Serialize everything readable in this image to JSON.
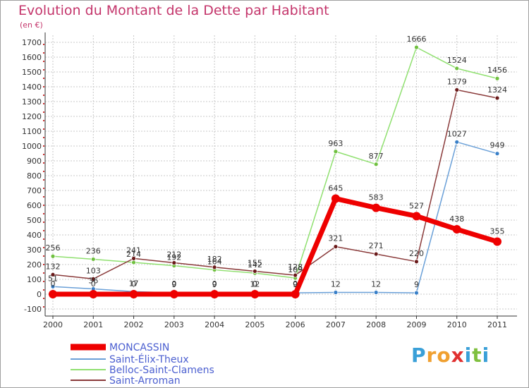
{
  "title": "Evolution du Montant de la Dette par Habitant",
  "unit": "(en €)",
  "logo": {
    "letters": [
      {
        "ch": "P",
        "color": "#3aa0d8"
      },
      {
        "ch": "r",
        "color": "#f0a030"
      },
      {
        "ch": "o",
        "color": "#f0a030"
      },
      {
        "ch": "x",
        "color": "#e03030"
      },
      {
        "ch": "i",
        "color": "#3aa0d8"
      },
      {
        "ch": "t",
        "color": "#80c040"
      },
      {
        "ch": "i",
        "color": "#3aa0d8"
      }
    ]
  },
  "chart_data": {
    "type": "line",
    "x": [
      "2000",
      "2001",
      "2002",
      "2003",
      "2004",
      "2005",
      "2006",
      "2007",
      "2008",
      "2009",
      "2010",
      "2011"
    ],
    "ylim": [
      -100,
      1700
    ],
    "yticks": [
      -100,
      0,
      100,
      200,
      300,
      400,
      500,
      600,
      700,
      800,
      900,
      1000,
      1100,
      1200,
      1300,
      1400,
      1500,
      1600,
      1700
    ],
    "grid": true,
    "legend_position": "bottom-left",
    "series": [
      {
        "name": "MONCASSIN",
        "color": "#ee0000",
        "marker": "#ee0000",
        "width": 7,
        "radius": 6,
        "values": [
          0,
          0,
          0,
          0,
          0,
          0,
          0,
          645,
          583,
          527,
          438,
          355
        ],
        "labels": [
          "0",
          "0",
          "0",
          "0",
          "0",
          "0",
          "0",
          "645",
          "583",
          "527",
          "438",
          "355"
        ]
      },
      {
        "name": "Saint-Élix-Theux",
        "color": "#6aa0d8",
        "marker": "#3a80c8",
        "width": 1.5,
        "radius": 3,
        "values": [
          51,
          36,
          17,
          9,
          9,
          12,
          9,
          12,
          12,
          9,
          1027,
          949
        ],
        "labels": [
          "51",
          "36",
          "17",
          "9",
          "9",
          "12",
          "9",
          "12",
          "12",
          "9",
          "1027",
          "949"
        ]
      },
      {
        "name": "Belloc-Saint-Clamens",
        "color": "#90e070",
        "marker": "#70c040",
        "width": 1.5,
        "radius": 3,
        "values": [
          256,
          236,
          214,
          192,
          164,
          142,
          109,
          963,
          877,
          1666,
          1524,
          1456
        ],
        "labels": [
          "256",
          "236",
          "214",
          "192",
          "164",
          "142",
          "109",
          "963",
          "877",
          "1666",
          "1524",
          "1456"
        ]
      },
      {
        "name": "Saint-Arroman",
        "color": "#8a3a3a",
        "marker": "#6a1a1a",
        "width": 1.5,
        "radius": 3,
        "values": [
          132,
          103,
          241,
          212,
          182,
          155,
          128,
          321,
          271,
          220,
          1379,
          1324
        ],
        "labels": [
          "132",
          "103",
          "241",
          "212",
          "182",
          "155",
          "128",
          "321",
          "271",
          "220",
          "1379",
          "1324"
        ]
      }
    ],
    "draw_order": [
      2,
      3,
      1,
      0
    ]
  }
}
